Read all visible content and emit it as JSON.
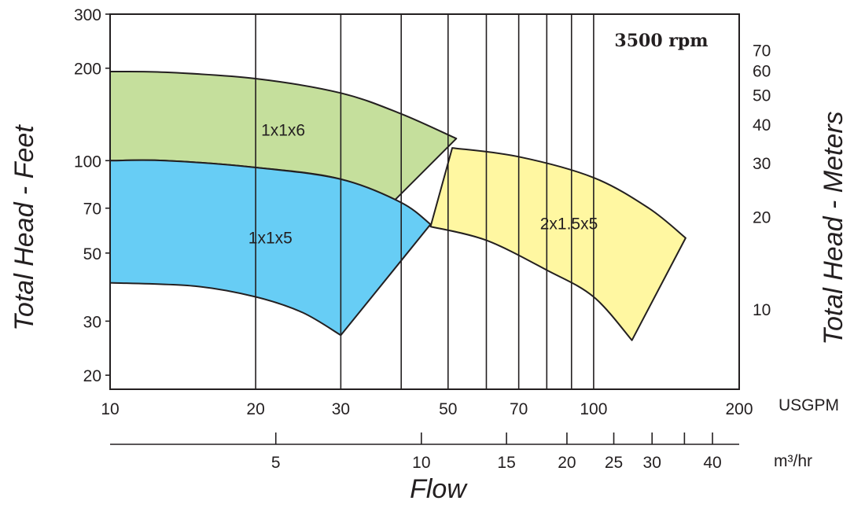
{
  "chart_data": {
    "type": "area",
    "title": "",
    "annotation": "3500 rpm",
    "x_scale": "log",
    "y_scale": "log",
    "xlim": [
      10,
      200
    ],
    "ylim": [
      18,
      300
    ],
    "grid": "vertical",
    "left_axis": {
      "title": "Total Head - Feet",
      "ticks": [
        20,
        30,
        50,
        70,
        100,
        200,
        300
      ]
    },
    "right_axis": {
      "title": "Total Head - Meters",
      "ticks": [
        10,
        20,
        30,
        40,
        50,
        60,
        70
      ]
    },
    "bottom_axis": {
      "title": "Flow",
      "unit_label": "USGPM",
      "ticks": [
        10,
        20,
        30,
        50,
        70,
        100,
        200
      ],
      "gridlines": [
        20,
        30,
        40,
        50,
        60,
        70,
        80,
        90,
        100
      ]
    },
    "secondary_axis": {
      "unit_label": "m³/hr",
      "ticks": [
        5,
        10,
        15,
        20,
        25,
        30,
        40
      ],
      "minor_ticks": [
        25,
        30,
        35,
        40
      ]
    },
    "series": [
      {
        "name": "1x1x6",
        "color": "#c5df9c",
        "upper": [
          [
            10,
            195
          ],
          [
            13,
            194
          ],
          [
            20,
            185
          ],
          [
            30,
            166
          ],
          [
            40,
            142
          ],
          [
            52,
            118
          ]
        ],
        "lower": [
          [
            10,
            100
          ],
          [
            13,
            100
          ],
          [
            20,
            95
          ],
          [
            30,
            87
          ],
          [
            38,
            72
          ]
        ]
      },
      {
        "name": "1x1x5",
        "color": "#67cdf5",
        "upper": [
          [
            10,
            100
          ],
          [
            13,
            100
          ],
          [
            20,
            95
          ],
          [
            30,
            87
          ],
          [
            40,
            73
          ],
          [
            46,
            62
          ]
        ],
        "lower": [
          [
            10,
            40
          ],
          [
            15,
            39
          ],
          [
            20,
            36
          ],
          [
            25,
            32
          ],
          [
            30,
            27
          ]
        ]
      },
      {
        "name": "2x1.5x5",
        "color": "#fff7a1",
        "upper": [
          [
            51,
            110
          ],
          [
            70,
            103
          ],
          [
            100,
            88
          ],
          [
            130,
            70
          ],
          [
            155,
            56
          ]
        ],
        "lower": [
          [
            46,
            61
          ],
          [
            60,
            55
          ],
          [
            80,
            44
          ],
          [
            100,
            36
          ],
          [
            120,
            26
          ]
        ]
      }
    ]
  }
}
